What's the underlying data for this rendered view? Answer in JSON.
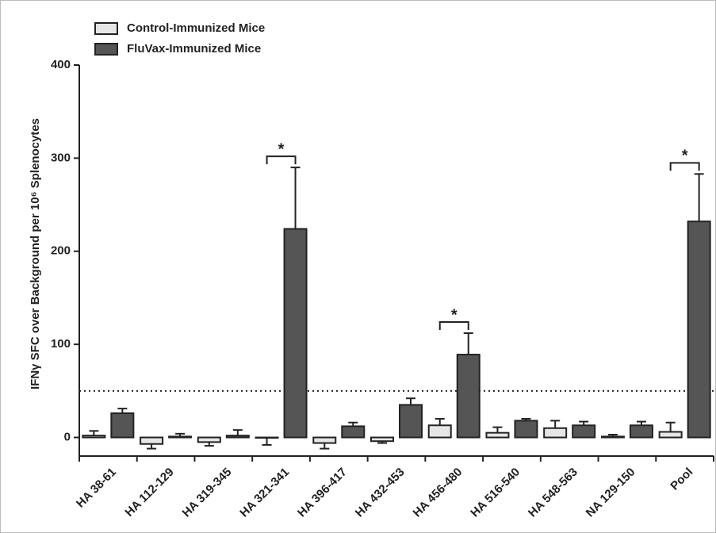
{
  "chart_data": {
    "type": "bar",
    "ylabel": "IFNγ SFC over Background per 10⁶ Splenocytes",
    "categories": [
      "HA 38-61",
      "HA 112-129",
      "HA 319-345",
      "HA 321-341",
      "HA 396-417",
      "HA 432-453",
      "HA 456-480",
      "HA 516-540",
      "HA 548-563",
      "NA 129-150",
      "Pool"
    ],
    "series": [
      {
        "name": "Control-Immunized Mice",
        "color": "#e6e6e6",
        "values": [
          2,
          -7,
          -5,
          0,
          -6,
          -4,
          13,
          5,
          10,
          1,
          6
        ],
        "errors": [
          5,
          5,
          4,
          8,
          6,
          2,
          7,
          6,
          8,
          2,
          10
        ]
      },
      {
        "name": "FluVax-Immunized Mice",
        "color": "#555555",
        "values": [
          26,
          1,
          2,
          224,
          12,
          35,
          89,
          18,
          13,
          13,
          232
        ],
        "errors": [
          5,
          3,
          6,
          66,
          4,
          7,
          23,
          2,
          4,
          4,
          51
        ]
      }
    ],
    "threshold": 50,
    "annotations": [
      {
        "text": "*",
        "x": "HA 321-341"
      },
      {
        "text": "*",
        "x": "HA 456-480"
      },
      {
        "text": "*",
        "x": "Pool"
      }
    ],
    "ylim": [
      -20,
      400
    ],
    "yticks": [
      0,
      100,
      200,
      300,
      400
    ],
    "legend": "top-left"
  }
}
